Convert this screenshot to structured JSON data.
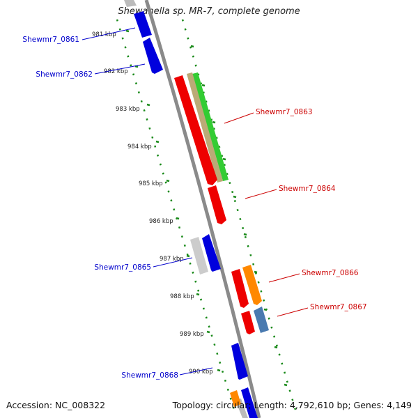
{
  "title": "Shewanella sp. MR-7, complete genome",
  "accession_text": "Accession: NC_008322",
  "stats_text": "Topology: circular; Length: 4,792,610 bp; Genes: 4,149",
  "colors": {
    "backbone": "#888888",
    "dotted_track": "#1a8a1a",
    "forward_label": "#cc0000",
    "reverse_label": "#0000cc"
  },
  "ticks": [
    "981 kbp",
    "982 kbp",
    "983 kbp",
    "984 kbp",
    "985 kbp",
    "986 kbp",
    "987 kbp",
    "988 kbp",
    "989 kbp",
    "990 kbp"
  ],
  "genes_left": [
    {
      "name": "Shewmr7_0861",
      "color": "#0000cc"
    },
    {
      "name": "Shewmr7_0862",
      "color": "#0000cc"
    },
    {
      "name": "Shewmr7_0865",
      "color": "#0000cc"
    },
    {
      "name": "Shewmr7_0868",
      "color": "#0000cc"
    }
  ],
  "genes_right": [
    {
      "name": "Shewmr7_0863",
      "color": "#cc0000"
    },
    {
      "name": "Shewmr7_0864",
      "color": "#cc0000"
    },
    {
      "name": "Shewmr7_0866",
      "color": "#cc0000"
    },
    {
      "name": "Shewmr7_0867",
      "color": "#cc0000"
    }
  ]
}
